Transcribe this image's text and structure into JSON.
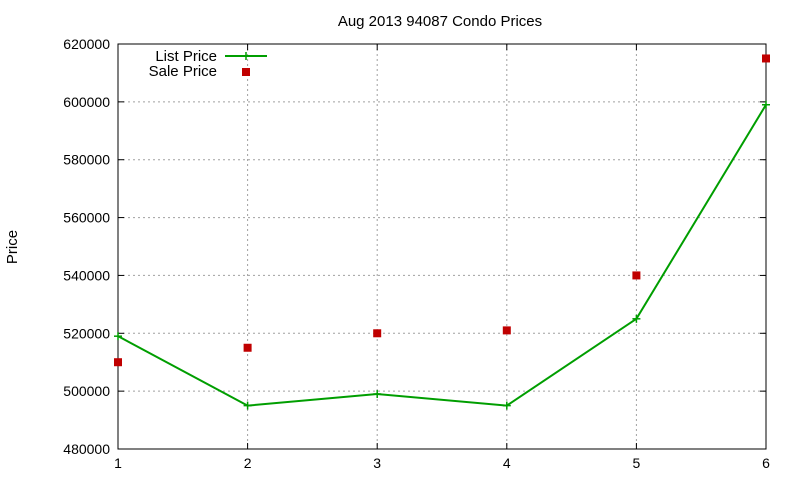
{
  "chart_data": {
    "type": "line",
    "title": "Aug 2013 94087 Condo Prices",
    "xlabel": "",
    "ylabel": "Price",
    "xlim": [
      1,
      6
    ],
    "ylim": [
      480000,
      620000
    ],
    "xticks": [
      1,
      2,
      3,
      4,
      5,
      6
    ],
    "yticks": [
      480000,
      500000,
      520000,
      540000,
      560000,
      580000,
      600000,
      620000
    ],
    "grid": true,
    "legend_position": "top-left",
    "series": [
      {
        "name": "List Price",
        "style": "line-with-plus-markers",
        "color": "#009e00",
        "x": [
          1,
          2,
          3,
          4,
          5,
          6
        ],
        "values": [
          519000,
          495000,
          499000,
          495000,
          525000,
          599000
        ]
      },
      {
        "name": "Sale Price",
        "style": "square-points",
        "color": "#c00000",
        "x": [
          1,
          2,
          3,
          4,
          5,
          6
        ],
        "values": [
          510000,
          515000,
          520000,
          521000,
          540000,
          615000
        ]
      }
    ]
  }
}
